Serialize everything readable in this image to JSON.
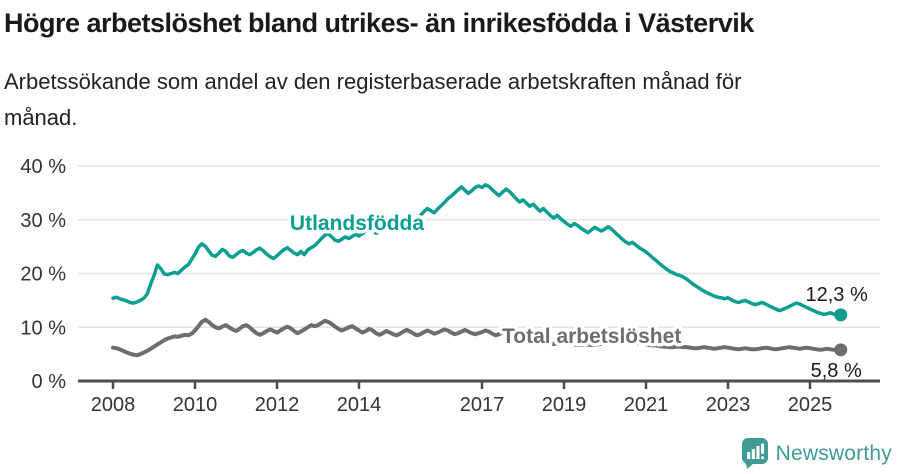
{
  "chart_data": {
    "type": "line",
    "title": "Högre arbetslöshet bland utrikes- än inrikesfödda i Västervik",
    "subtitle": "Arbetssökande som andel av den registerbaserade arbetskraften månad för månad.",
    "x_unit": "month",
    "x_range": {
      "start": "2008-01",
      "end": "2025-10"
    },
    "ylim": [
      0,
      40
    ],
    "grid": "horizontal",
    "grid_color": "#E3E3E3",
    "axis_color": "#4D4D4D",
    "value_label_color": "#1A1A1A",
    "y_ticks": [
      {
        "value": 0,
        "label": "0 %"
      },
      {
        "value": 10,
        "label": "10 %"
      },
      {
        "value": 20,
        "label": "20 %"
      },
      {
        "value": 30,
        "label": "30 %"
      },
      {
        "value": 40,
        "label": "40 %"
      }
    ],
    "x_ticks": [
      {
        "year": 2008,
        "label": "2008"
      },
      {
        "year": 2010,
        "label": "2010"
      },
      {
        "year": 2012,
        "label": "2012"
      },
      {
        "year": 2014,
        "label": "2014"
      },
      {
        "year": 2017,
        "label": "2017"
      },
      {
        "year": 2019,
        "label": "2019"
      },
      {
        "year": 2021,
        "label": "2021"
      },
      {
        "year": 2023,
        "label": "2023"
      },
      {
        "year": 2025,
        "label": "2025"
      }
    ],
    "series": [
      {
        "name": "Utlandsfödda",
        "color": "#0C9E91",
        "end_label": "12,3 %",
        "values": [
          15.4,
          15.6,
          15.3,
          15.1,
          14.9,
          14.6,
          14.5,
          14.7,
          15.0,
          15.4,
          16.2,
          18.0,
          19.6,
          21.6,
          20.9,
          19.9,
          19.8,
          20.0,
          20.2,
          20.0,
          20.6,
          21.2,
          21.6,
          22.6,
          23.6,
          24.9,
          25.5,
          25.1,
          24.2,
          23.4,
          23.2,
          23.8,
          24.5,
          24.1,
          23.3,
          23.0,
          23.5,
          24.0,
          24.3,
          23.8,
          23.5,
          23.9,
          24.4,
          24.7,
          24.2,
          23.6,
          23.1,
          22.8,
          23.3,
          23.9,
          24.4,
          24.8,
          24.3,
          23.8,
          23.5,
          24.1,
          23.5,
          24.4,
          24.8,
          25.2,
          25.8,
          26.5,
          27.1,
          27.4,
          26.8,
          26.2,
          26.0,
          26.4,
          26.8,
          26.5,
          26.9,
          27.3,
          27.0,
          27.4,
          27.9,
          28.4,
          28.0,
          27.5,
          27.8,
          28.4,
          29.0,
          28.6,
          28.2,
          28.8,
          29.4,
          30.0,
          30.6,
          31.0,
          30.5,
          30.2,
          30.8,
          31.5,
          32.1,
          31.7,
          31.3,
          32.0,
          32.6,
          33.2,
          33.9,
          34.4,
          35.0,
          35.6,
          36.1,
          35.5,
          34.9,
          35.4,
          36.0,
          36.3,
          36.0,
          36.5,
          36.2,
          35.6,
          35.0,
          34.5,
          35.1,
          35.7,
          35.3,
          34.6,
          33.9,
          33.3,
          33.7,
          33.1,
          32.5,
          32.9,
          32.2,
          31.6,
          32.1,
          31.4,
          30.8,
          30.3,
          30.8,
          30.2,
          29.7,
          29.2,
          28.8,
          29.3,
          28.9,
          28.4,
          28.0,
          27.6,
          28.1,
          28.6,
          28.2,
          27.9,
          28.3,
          28.7,
          28.2,
          27.6,
          27.0,
          26.4,
          25.9,
          25.5,
          25.8,
          25.3,
          24.8,
          24.4,
          24.0,
          23.5,
          22.9,
          22.4,
          21.8,
          21.3,
          20.8,
          20.4,
          20.1,
          19.8,
          19.6,
          19.3,
          18.9,
          18.4,
          17.9,
          17.5,
          17.1,
          16.7,
          16.4,
          16.1,
          15.8,
          15.6,
          15.5,
          15.3,
          15.5,
          15.1,
          14.8,
          14.6,
          14.8,
          15.0,
          14.7,
          14.4,
          14.2,
          14.4,
          14.6,
          14.3,
          14.0,
          13.7,
          13.4,
          13.1,
          13.3,
          13.6,
          13.9,
          14.2,
          14.5,
          14.3,
          14.0,
          13.7,
          13.4,
          13.1,
          12.8,
          12.6,
          12.4,
          12.5,
          12.7,
          12.4,
          12.3,
          12.3
        ]
      },
      {
        "name": "Total arbetslöshet",
        "color": "#6E6C70",
        "end_label": "5,8 %",
        "values": [
          6.2,
          6.1,
          5.9,
          5.6,
          5.3,
          5.1,
          4.9,
          4.8,
          5.0,
          5.3,
          5.6,
          6.0,
          6.4,
          6.8,
          7.2,
          7.6,
          7.9,
          8.1,
          8.3,
          8.2,
          8.4,
          8.6,
          8.5,
          8.8,
          9.4,
          10.2,
          11.0,
          11.4,
          11.0,
          10.4,
          10.0,
          9.8,
          10.1,
          10.4,
          10.0,
          9.6,
          9.3,
          9.7,
          10.2,
          10.4,
          10.0,
          9.4,
          8.9,
          8.6,
          8.9,
          9.3,
          9.6,
          9.3,
          9.0,
          9.4,
          9.8,
          10.1,
          9.8,
          9.3,
          8.9,
          9.2,
          9.6,
          10.0,
          10.4,
          10.2,
          10.4,
          10.8,
          11.2,
          11.0,
          10.6,
          10.1,
          9.7,
          9.4,
          9.7,
          10.0,
          10.2,
          9.8,
          9.4,
          9.0,
          9.3,
          9.7,
          9.4,
          8.9,
          8.6,
          8.9,
          9.3,
          9.0,
          8.7,
          8.5,
          8.8,
          9.2,
          9.5,
          9.2,
          8.8,
          8.5,
          8.7,
          9.1,
          9.4,
          9.1,
          8.8,
          9.0,
          9.3,
          9.6,
          9.4,
          9.0,
          8.7,
          8.9,
          9.2,
          9.5,
          9.2,
          8.9,
          8.7,
          8.9,
          9.1,
          9.4,
          9.2,
          8.8,
          8.5,
          8.7,
          9.0,
          8.8,
          8.5,
          8.3,
          8.1,
          8.0,
          7.9,
          7.7,
          7.6,
          7.4,
          7.3,
          7.2,
          7.1,
          7.0,
          7.0,
          6.9,
          6.9,
          7.0,
          7.0,
          6.9,
          6.8,
          6.8,
          6.7,
          6.7,
          6.8,
          6.8,
          6.7,
          6.7,
          6.8,
          6.9,
          7.1,
          7.3,
          7.8,
          8.1,
          8.0,
          7.8,
          7.6,
          7.4,
          7.2,
          7.1,
          7.0,
          6.9,
          6.8,
          6.7,
          6.6,
          6.6,
          6.5,
          6.4,
          6.4,
          6.3,
          6.3,
          6.4,
          6.4,
          6.3,
          6.3,
          6.2,
          6.1,
          6.1,
          6.2,
          6.3,
          6.2,
          6.1,
          6.0,
          6.1,
          6.2,
          6.3,
          6.2,
          6.1,
          6.0,
          5.9,
          6.0,
          6.1,
          6.0,
          5.9,
          5.9,
          6.0,
          6.1,
          6.2,
          6.1,
          6.0,
          5.9,
          6.0,
          6.1,
          6.2,
          6.3,
          6.2,
          6.1,
          6.0,
          6.1,
          6.2,
          6.1,
          6.0,
          5.9,
          5.8,
          5.9,
          6.0,
          5.9,
          5.8,
          5.8,
          5.8
        ]
      }
    ]
  },
  "footer": {
    "brand": "Newsworthy",
    "brand_color": "#3F9B93",
    "icon": "newsworthy-speech-bubble-bar-chart-icon"
  }
}
